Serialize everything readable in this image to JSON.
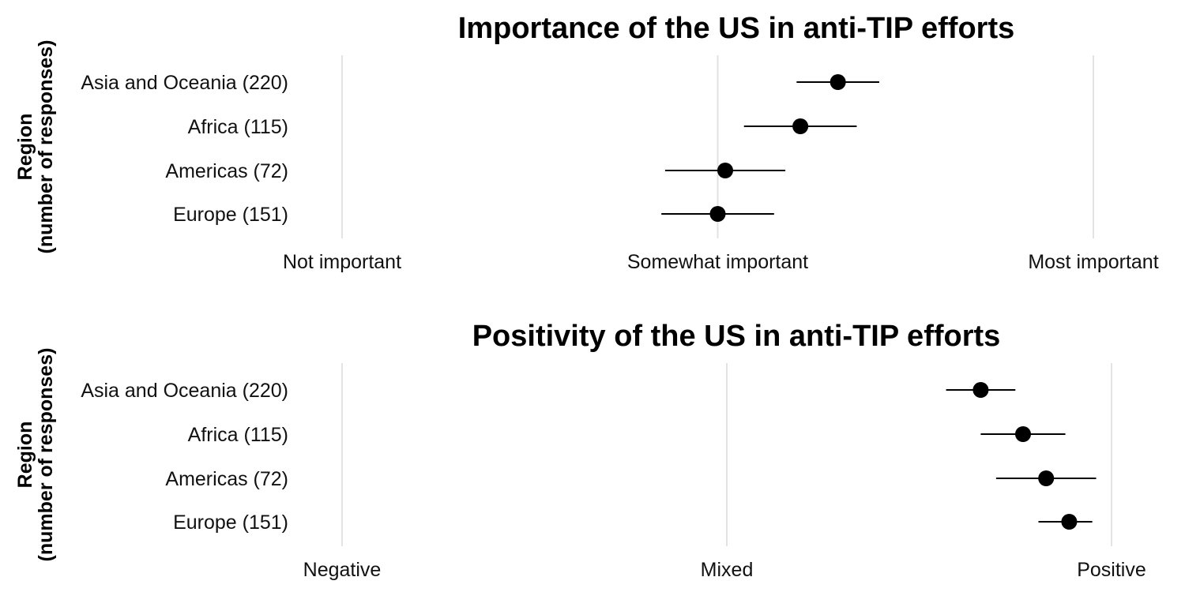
{
  "chart_data": [
    {
      "type": "scatter",
      "title": "Importance of the US in anti-TIP efforts",
      "ylabel": "Region\n(number of responses)",
      "xlabel": "",
      "xlim": [
        1,
        3
      ],
      "xticks": [
        1,
        2,
        3
      ],
      "xtick_labels": [
        "Not important",
        "Somewhat important",
        "Most important"
      ],
      "grid": "vertical",
      "categories": [
        "Asia and Oceania (220)",
        "Africa (115)",
        "Americas (72)",
        "Europe (151)"
      ],
      "series": [
        {
          "values": [
            2.32,
            2.22,
            2.02,
            2.0
          ],
          "lower": [
            2.21,
            2.07,
            1.86,
            1.85
          ],
          "upper": [
            2.43,
            2.37,
            2.18,
            2.15
          ]
        }
      ]
    },
    {
      "type": "scatter",
      "title": "Positivity of the US in anti-TIP efforts",
      "ylabel": "Region\n(number of responses)",
      "xlabel": "",
      "xlim": [
        1,
        3
      ],
      "xticks": [
        1,
        2,
        3
      ],
      "xtick_labels": [
        "Negative",
        "Mixed",
        "Positive"
      ],
      "grid": "vertical",
      "categories": [
        "Asia and Oceania (220)",
        "Africa (115)",
        "Americas (72)",
        "Europe (151)"
      ],
      "series": [
        {
          "values": [
            2.66,
            2.77,
            2.83,
            2.89
          ],
          "lower": [
            2.57,
            2.66,
            2.7,
            2.81
          ],
          "upper": [
            2.75,
            2.88,
            2.96,
            2.95
          ]
        }
      ]
    }
  ]
}
